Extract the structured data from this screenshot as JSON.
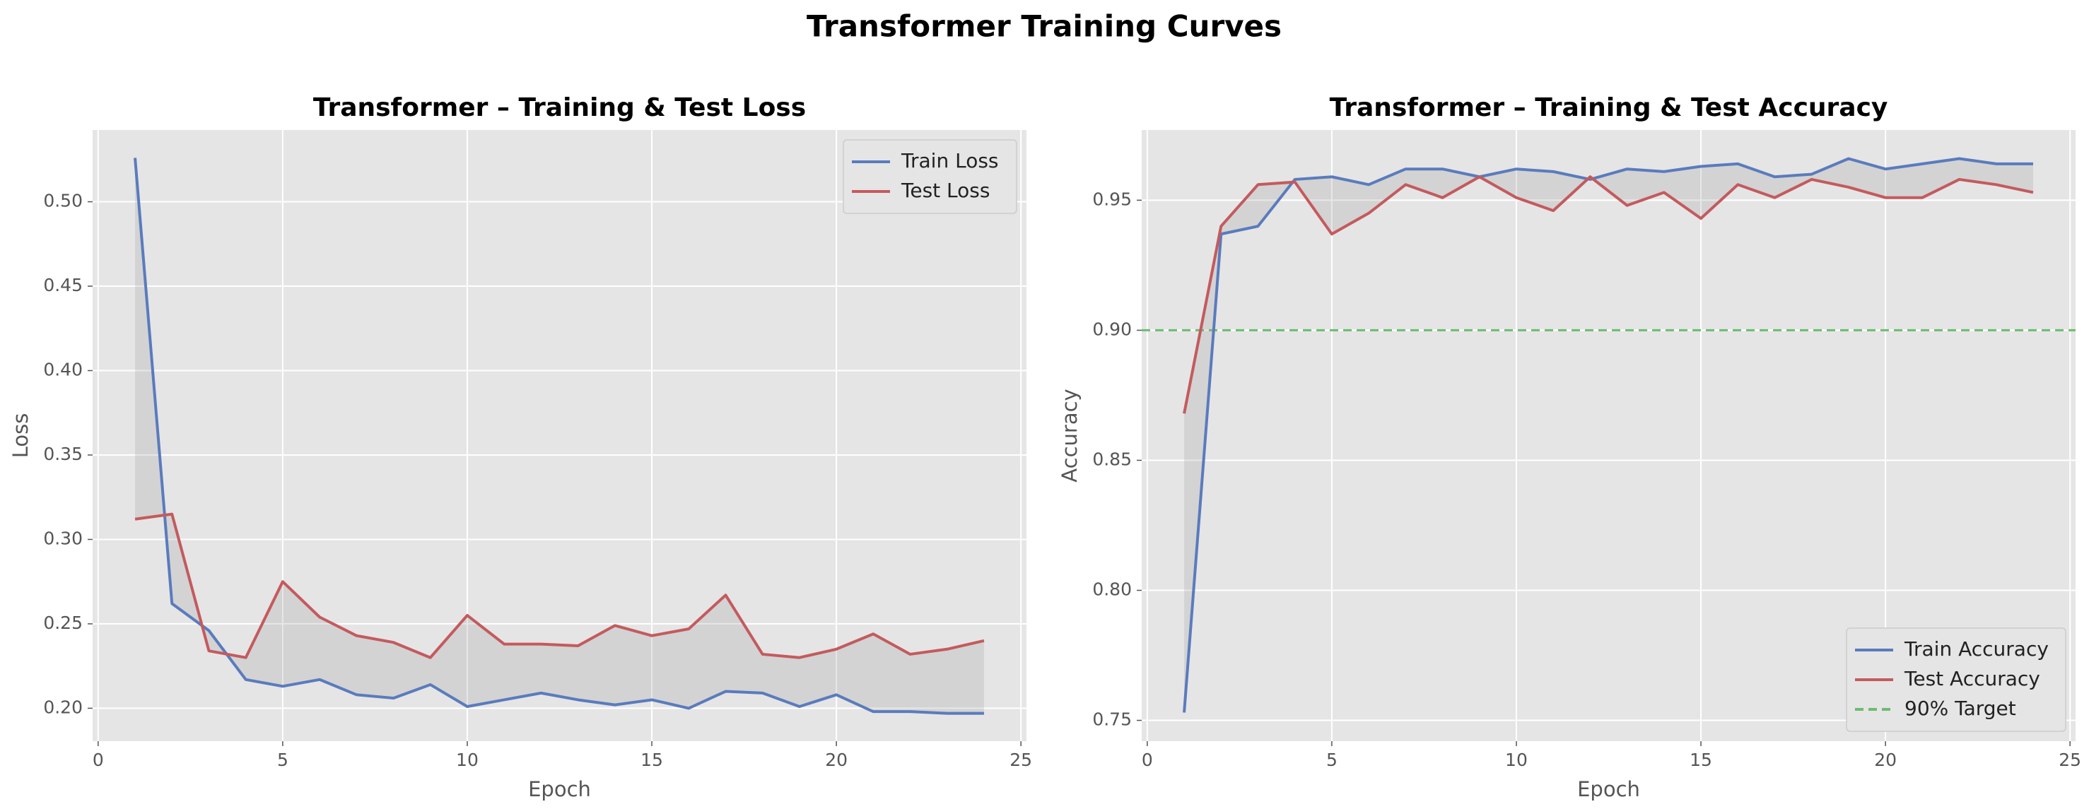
{
  "title": "Transformer Training Curves",
  "chart_data": [
    {
      "type": "line",
      "title": "Transformer – Training & Test Loss",
      "xlabel": "Epoch",
      "ylabel": "Loss",
      "x": [
        1,
        2,
        3,
        4,
        5,
        6,
        7,
        8,
        9,
        10,
        11,
        12,
        13,
        14,
        15,
        16,
        17,
        18,
        19,
        20,
        21,
        22,
        23,
        24
      ],
      "series": [
        {
          "name": "Train Loss",
          "color": "#5a7bbd",
          "values": [
            0.526,
            0.262,
            0.246,
            0.217,
            0.213,
            0.217,
            0.208,
            0.206,
            0.214,
            0.201,
            0.205,
            0.209,
            0.205,
            0.202,
            0.205,
            0.2,
            0.21,
            0.209,
            0.201,
            0.208,
            0.198,
            0.198,
            0.197,
            0.197
          ]
        },
        {
          "name": "Test Loss",
          "color": "#c45a5e",
          "values": [
            0.312,
            0.315,
            0.234,
            0.23,
            0.275,
            0.254,
            0.243,
            0.239,
            0.23,
            0.255,
            0.238,
            0.238,
            0.237,
            0.249,
            0.243,
            0.247,
            0.267,
            0.232,
            0.23,
            0.235,
            0.244,
            0.232,
            0.235,
            0.24
          ]
        }
      ],
      "fill_between": true,
      "xlim": [
        -0.15,
        25.15
      ],
      "xticks": [
        0,
        5,
        10,
        15,
        20,
        25
      ],
      "ylim": [
        0.1805,
        0.5425
      ],
      "yticks": [
        {
          "value": 0.2,
          "label": "0.20"
        },
        0.25,
        {
          "value": 0.3,
          "label": "0.30"
        },
        0.35,
        {
          "value": 0.4,
          "label": "0.40"
        },
        0.45,
        {
          "value": 0.5,
          "label": "0.50"
        }
      ],
      "grid": true,
      "legend": "upper-right"
    },
    {
      "type": "line",
      "title": "Transformer – Training & Test Accuracy",
      "xlabel": "Epoch",
      "ylabel": "Accuracy",
      "x": [
        1,
        2,
        3,
        4,
        5,
        6,
        7,
        8,
        9,
        10,
        11,
        12,
        13,
        14,
        15,
        16,
        17,
        18,
        19,
        20,
        21,
        22,
        23,
        24
      ],
      "series": [
        {
          "name": "Train Accuracy",
          "color": "#5a7bbd",
          "values": [
            0.753,
            0.937,
            0.94,
            0.958,
            0.959,
            0.956,
            0.962,
            0.962,
            0.959,
            0.962,
            0.961,
            0.958,
            0.962,
            0.961,
            0.963,
            0.964,
            0.959,
            0.96,
            0.966,
            0.962,
            0.964,
            0.966,
            0.964,
            0.964
          ]
        },
        {
          "name": "Test Accuracy",
          "color": "#c45a5e",
          "values": [
            0.868,
            0.94,
            0.956,
            0.957,
            0.937,
            0.945,
            0.956,
            0.951,
            0.959,
            0.951,
            0.946,
            0.959,
            0.948,
            0.953,
            0.943,
            0.956,
            0.951,
            0.958,
            0.955,
            0.951,
            0.951,
            0.958,
            0.956,
            0.953
          ]
        }
      ],
      "hlines": [
        {
          "value": 0.9,
          "name": "90% Target",
          "color": "#6dbb72",
          "style": "dashed"
        }
      ],
      "fill_between": true,
      "xlim": [
        -0.15,
        25.15
      ],
      "xticks": [
        0,
        5,
        10,
        15,
        20,
        25
      ],
      "ylim": [
        0.742,
        0.977
      ],
      "yticks": [
        0.75,
        {
          "value": 0.8,
          "label": "0.80"
        },
        0.85,
        {
          "value": 0.9,
          "label": "0.90"
        },
        0.95
      ],
      "grid": true,
      "legend": "lower-right"
    }
  ]
}
